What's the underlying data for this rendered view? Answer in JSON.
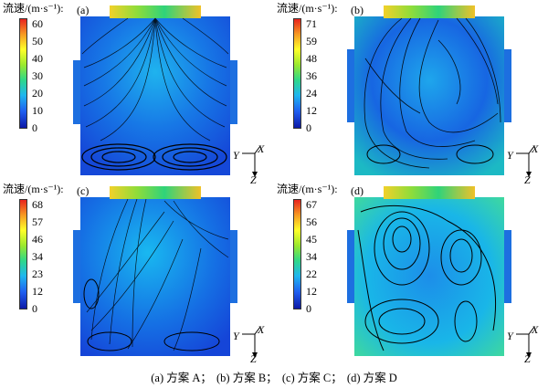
{
  "legend_title": "流速/(m·s⁻¹):",
  "axis_labels": {
    "y": "Y",
    "x": "X",
    "z": "Z"
  },
  "panels": [
    {
      "label": "(a)",
      "ticks": [
        "60",
        "50",
        "40",
        "30",
        "20",
        "10",
        "0"
      ]
    },
    {
      "label": "(b)",
      "ticks": [
        "71",
        "59",
        "48",
        "36",
        "24",
        "12",
        "0"
      ]
    },
    {
      "label": "(c)",
      "ticks": [
        "68",
        "57",
        "46",
        "34",
        "23",
        "12",
        "0"
      ]
    },
    {
      "label": "(d)",
      "ticks": [
        "67",
        "56",
        "45",
        "34",
        "22",
        "12",
        "0"
      ]
    }
  ],
  "caption": {
    "a": "(a)  方案 A；",
    "b": "(b)  方案 B；",
    "c": "(c)  方案 C；",
    "d": "(d)  方案 D"
  },
  "colors": {
    "low": "#0d19a6",
    "mid": "#1fb7ef",
    "high": "#e8231e",
    "streamline": "#000000"
  }
}
